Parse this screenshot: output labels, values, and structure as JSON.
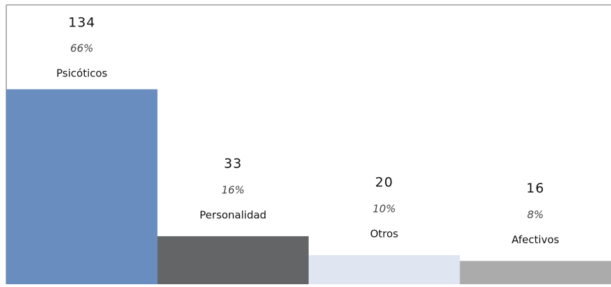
{
  "chart_data": {
    "type": "bar",
    "categories": [
      "Psicóticos",
      "Personalidad",
      "Otros",
      "Afectivos"
    ],
    "values": [
      134,
      33,
      20,
      16
    ],
    "percent_labels": [
      "66%",
      "16%",
      "10%",
      "8%"
    ],
    "colors": [
      "#6a8dc0",
      "#646567",
      "#dfe6f1",
      "#ababab"
    ],
    "ylim": [
      0,
      192
    ]
  }
}
